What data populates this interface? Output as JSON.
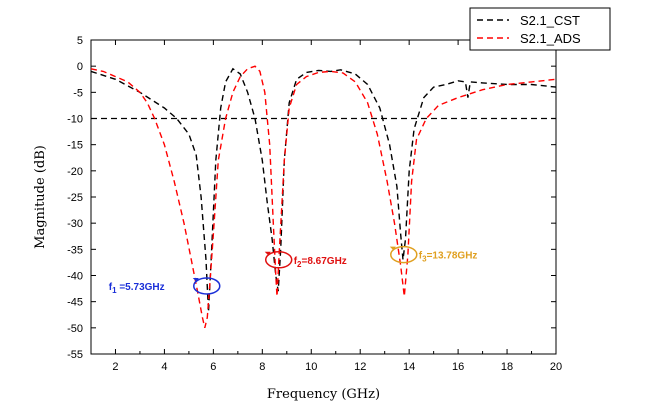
{
  "chart_data": {
    "type": "line",
    "title": "",
    "xlabel": "Frequency (GHz)",
    "ylabel": "Magnitude (dB)",
    "xlim": [
      1,
      20
    ],
    "ylim": [
      -55,
      5
    ],
    "xticks": [
      2,
      4,
      6,
      8,
      10,
      12,
      14,
      16,
      18,
      20
    ],
    "yticks": [
      5,
      0,
      -5,
      -10,
      -15,
      -20,
      -25,
      -30,
      -35,
      -40,
      -45,
      -50,
      -55
    ],
    "legend_position": "top-right",
    "reference_line": {
      "y": -10,
      "style": "dashed",
      "color": "#000000"
    },
    "series": [
      {
        "name": "S2.1_CST",
        "color": "#000000",
        "style": "dashed",
        "x": [
          1,
          2,
          3,
          4,
          4.5,
          5,
          5.3,
          5.5,
          5.7,
          5.8,
          5.9,
          6.1,
          6.3,
          6.5,
          6.8,
          7.1,
          7.4,
          7.7,
          8.0,
          8.2,
          8.4,
          8.55,
          8.65,
          8.75,
          8.9,
          9.1,
          9.4,
          9.8,
          10.3,
          10.8,
          11.2,
          11.8,
          12.3,
          12.8,
          13.2,
          13.5,
          13.65,
          13.75,
          13.85,
          14.0,
          14.2,
          14.6,
          15.0,
          15.5,
          16.0,
          16.3,
          16.4,
          16.5,
          17,
          18,
          19,
          20
        ],
        "y": [
          -1,
          -2.5,
          -5,
          -8,
          -10,
          -13,
          -17,
          -25,
          -37,
          -47,
          -38,
          -18,
          -8,
          -3,
          -0.5,
          -1.5,
          -5,
          -10,
          -18,
          -26,
          -33,
          -40,
          -43,
          -35,
          -18,
          -7,
          -2.5,
          -1.2,
          -0.8,
          -1,
          -0.7,
          -1.5,
          -3.5,
          -8,
          -15,
          -23,
          -32,
          -37,
          -33,
          -20,
          -12,
          -6,
          -4,
          -3.5,
          -2.8,
          -3,
          -6,
          -3,
          -3.2,
          -3.5,
          -3.5,
          -4
        ]
      },
      {
        "name": "S2.1_ADS",
        "color": "#ff0000",
        "style": "dashed",
        "x": [
          1,
          1.5,
          2,
          2.5,
          3,
          3.3,
          3.6,
          4,
          4.4,
          4.8,
          5.1,
          5.35,
          5.55,
          5.65,
          5.75,
          5.85,
          6.0,
          6.2,
          6.5,
          6.8,
          7.1,
          7.4,
          7.7,
          7.9,
          8.1,
          8.3,
          8.45,
          8.55,
          8.6,
          8.7,
          8.9,
          9.1,
          9.4,
          9.8,
          10.3,
          10.8,
          11.3,
          11.8,
          12.3,
          12.7,
          13.1,
          13.4,
          13.65,
          13.8,
          13.95,
          14.1,
          14.3,
          14.7,
          15.2,
          16,
          17,
          18,
          19,
          20
        ],
        "y": [
          -0.5,
          -1,
          -2,
          -3,
          -5,
          -7,
          -10,
          -15,
          -22,
          -30,
          -37,
          -43,
          -48,
          -50,
          -48,
          -42,
          -32,
          -18,
          -10,
          -5,
          -2,
          -0.5,
          0,
          -1,
          -5,
          -15,
          -30,
          -40,
          -44,
          -35,
          -18,
          -8,
          -3.5,
          -2,
          -1.2,
          -1,
          -1.3,
          -3,
          -7,
          -13,
          -22,
          -30,
          -38,
          -44,
          -36,
          -22,
          -14,
          -10,
          -7.5,
          -6,
          -4.5,
          -3.5,
          -3,
          -2.5
        ]
      }
    ],
    "annotations": [
      {
        "text": "f₁ =5.73GHz",
        "label": "f",
        "subscript": "1",
        "value": " =5.73GHz",
        "color": "#1a2fd8",
        "x": 5.73,
        "y": -42,
        "label_side": "left"
      },
      {
        "text": "f₂=8.67GHz",
        "label": "f",
        "subscript": "2",
        "value": "=8.67GHz",
        "color": "#e01010",
        "x": 8.67,
        "y": -37,
        "label_side": "right"
      },
      {
        "text": "f₃=13.78GHz",
        "label": "f",
        "subscript": "3",
        "value": "=13.78GHz",
        "color": "#e0a020",
        "x": 13.78,
        "y": -36,
        "label_side": "right"
      }
    ]
  }
}
